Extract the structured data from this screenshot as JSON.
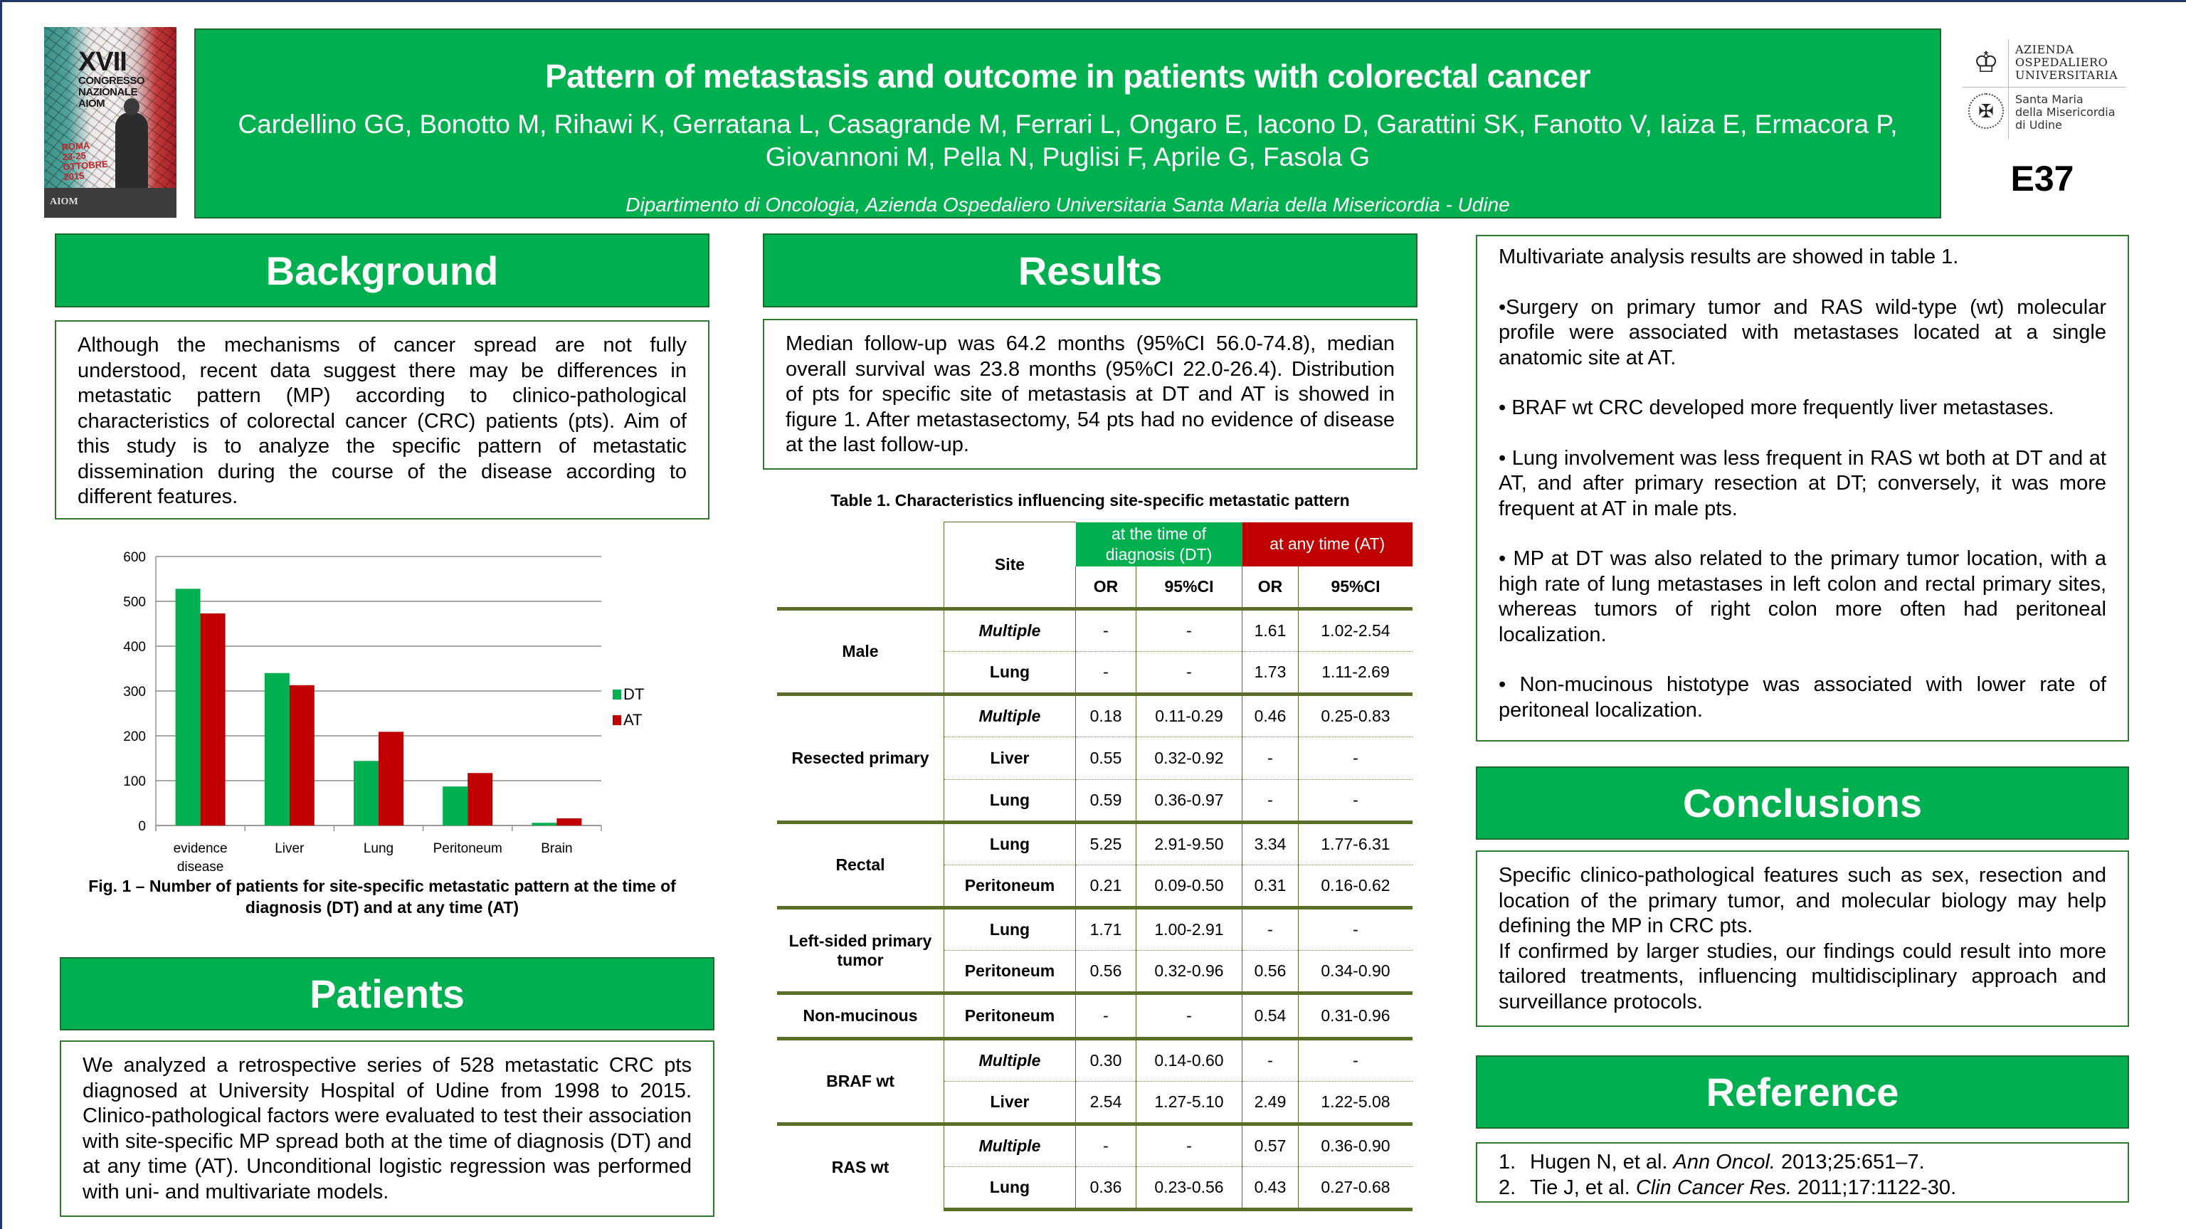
{
  "header": {
    "event_image": {
      "roman": "XVII",
      "lines": [
        "CONGRESSO",
        "NAZIONALE",
        "AIOM"
      ],
      "city_lines": [
        "ROMA",
        "23-25",
        "OTTOBRE",
        "2015"
      ],
      "org": "AIOM"
    },
    "title": "Pattern of metastasis and outcome in patients with colorectal cancer",
    "authors": "Cardellino GG, Bonotto M, Rihawi K, Gerratana L, Casagrande M, Ferrari L, Ongaro E, Iacono D, Garattini SK, Fanotto V, Iaiza E, Ermacora P, Giovannoni M, Pella N, Puglisi F, Aprile G, Fasola G",
    "affiliation": "Dipartimento di Oncologia, Azienda Ospedaliero Universitaria Santa Maria della Misericordia  - Udine",
    "logo": {
      "line1": [
        "AZIENDA",
        "OSPEDALIERO",
        "UNIVERSITARIA"
      ],
      "line2": [
        "Santa Maria",
        "della Misericordia",
        "di Udine"
      ]
    },
    "poster_code": "E37"
  },
  "background": {
    "heading": "Background",
    "text": "Although the mechanisms of cancer spread are not fully understood, recent data suggest there may be differences in metastatic pattern (MP) according to clinico-pathological characteristics of colorectal cancer (CRC) patients (pts). Aim of this study is to analyze the specific pattern of metastatic dissemination during the course of the disease according to different features."
  },
  "figure": {
    "caption": "Fig. 1 – Number of patients for site-specific metastatic pattern at the time of diagnosis (DT) and at any time (AT)"
  },
  "chart_data": {
    "type": "bar",
    "title": "",
    "categories": [
      "evidence disease",
      "Liver",
      "Lung",
      "Peritoneum",
      "Brain"
    ],
    "category_lines": [
      [
        "evidence",
        "disease"
      ],
      [
        "Liver"
      ],
      [
        "Lung"
      ],
      [
        "Peritoneum"
      ],
      [
        "Brain"
      ]
    ],
    "series": [
      {
        "name": "DT",
        "color": "#00b050",
        "values": [
          528,
          340,
          144,
          87,
          6
        ]
      },
      {
        "name": "AT",
        "color": "#c00000",
        "values": [
          473,
          313,
          209,
          117,
          16
        ]
      }
    ],
    "xlabel": "",
    "ylabel": "",
    "ylim": [
      0,
      600
    ],
    "yticks": [
      0,
      100,
      200,
      300,
      400,
      500,
      600
    ],
    "grid": true,
    "legend": "right"
  },
  "patients": {
    "heading": "Patients",
    "text": "We analyzed a retrospective series of 528 metastatic CRC pts diagnosed at University Hospital of Udine from 1998 to 2015. Clinico-pathological factors were evaluated to test their association with site-specific MP spread both at the time of diagnosis (DT) and at any time (AT). Unconditional logistic regression was performed with uni- and multivariate models."
  },
  "results": {
    "heading": "Results",
    "text": "Median follow-up was 64.2 months (95%CI 56.0-74.8), median overall survival was 23.8 months (95%CI 22.0-26.4). Distribution of pts for specific site of metastasis at DT and AT is showed in figure 1. After metastasectomy, 54 pts had no evidence of disease at the last follow-up."
  },
  "table": {
    "caption": "Table 1. Characteristics influencing site-specific metastatic pattern",
    "header_site": "Site",
    "header_dt": "at the time of diagnosis  (DT)",
    "header_at": "at any time (AT)",
    "header_or": "OR",
    "header_ci": "95%CI",
    "colors": {
      "dt": "#00b050",
      "at": "#c00000"
    },
    "groups": [
      {
        "label": "Male",
        "rows": [
          {
            "site": "Multiple",
            "italic": true,
            "dt_or": "-",
            "dt_ci": "-",
            "at_or": "1.61",
            "at_ci": "1.02-2.54"
          },
          {
            "site": "Lung",
            "italic": false,
            "dt_or": "-",
            "dt_ci": "-",
            "at_or": "1.73",
            "at_ci": "1.11-2.69"
          }
        ]
      },
      {
        "label": "Resected primary",
        "rows": [
          {
            "site": "Multiple",
            "italic": true,
            "dt_or": "0.18",
            "dt_ci": "0.11-0.29",
            "at_or": "0.46",
            "at_ci": "0.25-0.83"
          },
          {
            "site": "Liver",
            "italic": false,
            "dt_or": "0.55",
            "dt_ci": "0.32-0.92",
            "at_or": "-",
            "at_ci": "-"
          },
          {
            "site": "Lung",
            "italic": false,
            "dt_or": "0.59",
            "dt_ci": "0.36-0.97",
            "at_or": "-",
            "at_ci": "-"
          }
        ]
      },
      {
        "label": "Rectal",
        "rows": [
          {
            "site": "Lung",
            "italic": false,
            "dt_or": "5.25",
            "dt_ci": "2.91-9.50",
            "at_or": "3.34",
            "at_ci": "1.77-6.31"
          },
          {
            "site": "Peritoneum",
            "italic": false,
            "dt_or": "0.21",
            "dt_ci": "0.09-0.50",
            "at_or": "0.31",
            "at_ci": "0.16-0.62"
          }
        ]
      },
      {
        "label": "Left-sided primary tumor",
        "rows": [
          {
            "site": "Lung",
            "italic": false,
            "dt_or": "1.71",
            "dt_ci": "1.00-2.91",
            "at_or": "-",
            "at_ci": "-"
          },
          {
            "site": "Peritoneum",
            "italic": false,
            "dt_or": "0.56",
            "dt_ci": "0.32-0.96",
            "at_or": "0.56",
            "at_ci": "0.34-0.90"
          }
        ]
      },
      {
        "label": "Non-mucinous",
        "rows": [
          {
            "site": "Peritoneum",
            "italic": false,
            "dt_or": "-",
            "dt_ci": "-",
            "at_or": "0.54",
            "at_ci": "0.31-0.96"
          }
        ]
      },
      {
        "label": "BRAF wt",
        "rows": [
          {
            "site": "Multiple",
            "italic": true,
            "dt_or": "0.30",
            "dt_ci": "0.14-0.60",
            "at_or": "-",
            "at_ci": "-"
          },
          {
            "site": "Liver",
            "italic": false,
            "dt_or": "2.54",
            "dt_ci": "1.27-5.10",
            "at_or": "2.49",
            "at_ci": "1.22-5.08"
          }
        ]
      },
      {
        "label": "RAS wt",
        "rows": [
          {
            "site": "Multiple",
            "italic": true,
            "dt_or": "-",
            "dt_ci": "-",
            "at_or": "0.57",
            "at_ci": "0.36-0.90"
          },
          {
            "site": "Lung",
            "italic": false,
            "dt_or": "0.36",
            "dt_ci": "0.23-0.56",
            "at_or": "0.43",
            "at_ci": "0.27-0.68"
          }
        ]
      }
    ]
  },
  "multivariate": {
    "paragraphs": [
      "Multivariate analysis results are showed in table 1.",
      "•Surgery on primary tumor and RAS wild-type (wt) molecular profile were associated with metastases located at a single anatomic site at AT.",
      "• BRAF wt CRC developed more frequently liver metastases.",
      "• Lung involvement was less frequent in RAS wt both at DT and at AT, and after primary resection at DT; conversely, it was more frequent at AT in male pts.",
      "• MP at DT was also related to the primary tumor location, with a high rate of lung metastases in left colon and rectal primary sites, whereas tumors of right colon more often had peritoneal localization.",
      "• Non-mucinous histotype was associated with lower rate of peritoneal localization."
    ]
  },
  "conclusions": {
    "heading": "Conclusions",
    "paragraphs": [
      "Specific clinico-pathological features such as sex, resection and location of the primary tumor, and molecular biology may help defining the MP in CRC pts.",
      "If confirmed by larger studies, our findings could result into more tailored treatments, influencing multidisciplinary approach and surveillance protocols."
    ]
  },
  "reference": {
    "heading": "Reference",
    "items": [
      {
        "num": "1.",
        "authors": "Hugen N, et al. ",
        "journal": "Ann  Oncol.",
        "rest": " 2013;25:651–7."
      },
      {
        "num": "2.",
        "authors": "Tie J, et al. ",
        "journal": "Clin Cancer Res.",
        "rest": " 2011;17:1122-30."
      }
    ]
  }
}
